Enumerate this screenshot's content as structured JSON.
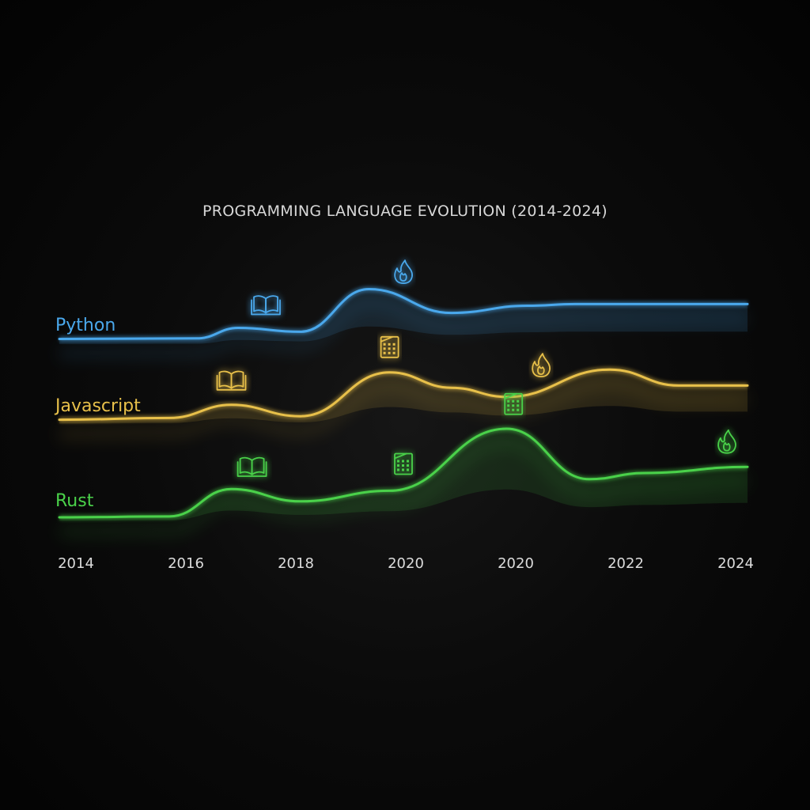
{
  "chart_data": {
    "type": "line",
    "title": "PROGRAMMING LANGUAGE EVOLUTION (2014-2024)",
    "xlabel": "",
    "ylabel": "",
    "x_tick_labels": [
      "2014",
      "2016",
      "2018",
      "2020",
      "2020",
      "2022",
      "2024"
    ],
    "grid": false,
    "legend": "inline labels at left",
    "series": [
      {
        "name": "Python",
        "color": "#4aa8ec",
        "points": [
          [
            0,
            0.05
          ],
          [
            0.2,
            0.06
          ],
          [
            0.26,
            0.25
          ],
          [
            0.35,
            0.18
          ],
          [
            0.45,
            0.95
          ],
          [
            0.57,
            0.52
          ],
          [
            0.68,
            0.65
          ],
          [
            0.75,
            0.68
          ],
          [
            1,
            0.68
          ]
        ],
        "markers": [
          {
            "at": 0.3,
            "icon": "book-icon"
          },
          {
            "at": 0.5,
            "icon": "fire-icon"
          }
        ]
      },
      {
        "name": "Javascript",
        "color": "#e8c04a",
        "points": [
          [
            0,
            0.02
          ],
          [
            0.16,
            0.05
          ],
          [
            0.25,
            0.28
          ],
          [
            0.35,
            0.08
          ],
          [
            0.48,
            0.85
          ],
          [
            0.57,
            0.58
          ],
          [
            0.65,
            0.42
          ],
          [
            0.8,
            0.9
          ],
          [
            0.9,
            0.62
          ],
          [
            1,
            0.62
          ]
        ],
        "markers": [
          {
            "at": 0.25,
            "icon": "book-icon"
          },
          {
            "at": 0.48,
            "icon": "building-icon"
          },
          {
            "at": 0.7,
            "icon": "fire-icon"
          }
        ]
      },
      {
        "name": "Rust",
        "color": "#4ad14a",
        "points": [
          [
            0,
            0.0
          ],
          [
            0.16,
            0.01
          ],
          [
            0.25,
            0.32
          ],
          [
            0.35,
            0.18
          ],
          [
            0.48,
            0.3
          ],
          [
            0.65,
            1.0
          ],
          [
            0.77,
            0.43
          ],
          [
            0.85,
            0.5
          ],
          [
            1,
            0.57
          ]
        ],
        "markers": [
          {
            "at": 0.28,
            "icon": "book-icon"
          },
          {
            "at": 0.5,
            "icon": "building-icon"
          },
          {
            "at": 0.66,
            "icon": "building-icon"
          },
          {
            "at": 0.97,
            "icon": "fire-icon"
          }
        ]
      }
    ]
  }
}
